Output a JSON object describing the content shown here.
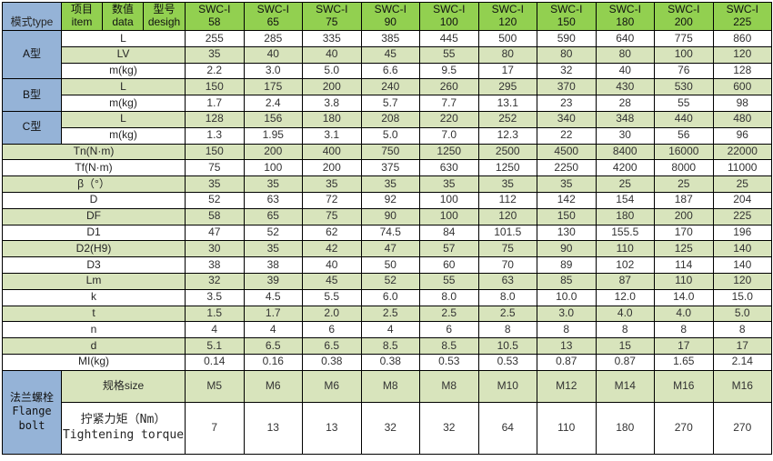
{
  "table": {
    "header": {
      "corner": "模式type",
      "columns": [
        {
          "zh": "项目",
          "en": "item"
        },
        {
          "zh": "数值",
          "en": "data"
        },
        {
          "zh": "型号",
          "en": "desigh"
        }
      ],
      "models": [
        {
          "series": "SWC-I",
          "size": "58"
        },
        {
          "series": "SWC-I",
          "size": "65"
        },
        {
          "series": "SWC-I",
          "size": "75"
        },
        {
          "series": "SWC-I",
          "size": "90"
        },
        {
          "series": "SWC-I",
          "size": "100"
        },
        {
          "series": "SWC-I",
          "size": "120"
        },
        {
          "series": "SWC-I",
          "size": "150"
        },
        {
          "series": "SWC-I",
          "size": "180"
        },
        {
          "series": "SWC-I",
          "size": "200"
        },
        {
          "series": "SWC-I",
          "size": "225"
        }
      ]
    },
    "type_sections": [
      {
        "type": "A型",
        "rows": [
          {
            "label": "L",
            "values": [
              "255",
              "285",
              "335",
              "385",
              "445",
              "500",
              "590",
              "640",
              "775",
              "860"
            ]
          },
          {
            "label": "LV",
            "values": [
              "35",
              "40",
              "40",
              "45",
              "55",
              "80",
              "80",
              "80",
              "100",
              "120"
            ]
          },
          {
            "label": "m(kg)",
            "values": [
              "2.2",
              "3.0",
              "5.0",
              "6.6",
              "9.5",
              "17",
              "32",
              "40",
              "76",
              "128"
            ]
          }
        ]
      },
      {
        "type": "B型",
        "rows": [
          {
            "label": "L",
            "values": [
              "150",
              "175",
              "200",
              "240",
              "260",
              "295",
              "370",
              "430",
              "530",
              "600"
            ]
          },
          {
            "label": "m(kg)",
            "values": [
              "1.7",
              "2.4",
              "3.8",
              "5.7",
              "7.7",
              "13.1",
              "23",
              "28",
              "55",
              "98"
            ]
          }
        ]
      },
      {
        "type": "C型",
        "rows": [
          {
            "label": "L",
            "values": [
              "128",
              "156",
              "180",
              "208",
              "220",
              "252",
              "340",
              "348",
              "440",
              "480"
            ]
          },
          {
            "label": "m(kg)",
            "values": [
              "1.3",
              "1.95",
              "3.1",
              "5.0",
              "7.0",
              "12.3",
              "22",
              "30",
              "56",
              "96"
            ]
          }
        ]
      }
    ],
    "param_rows": [
      {
        "label": "Tn(N·m)",
        "values": [
          "150",
          "200",
          "400",
          "750",
          "1250",
          "2500",
          "4500",
          "8400",
          "16000",
          "22000"
        ]
      },
      {
        "label": "Tf(N·m)",
        "values": [
          "75",
          "100",
          "200",
          "375",
          "630",
          "1250",
          "2250",
          "4200",
          "8000",
          "11000"
        ]
      },
      {
        "label": "β（°）",
        "values": [
          "35",
          "35",
          "35",
          "35",
          "35",
          "35",
          "35",
          "25",
          "25",
          "25"
        ]
      },
      {
        "label": "D",
        "values": [
          "52",
          "63",
          "72",
          "92",
          "100",
          "112",
          "142",
          "154",
          "187",
          "204"
        ]
      },
      {
        "label": "DF",
        "values": [
          "58",
          "65",
          "75",
          "90",
          "100",
          "120",
          "150",
          "180",
          "200",
          "225"
        ]
      },
      {
        "label": "D1",
        "values": [
          "47",
          "52",
          "62",
          "74.5",
          "84",
          "101.5",
          "130",
          "155.5",
          "170",
          "196"
        ]
      },
      {
        "label": "D2(H9)",
        "values": [
          "30",
          "35",
          "42",
          "47",
          "57",
          "75",
          "90",
          "110",
          "125",
          "140"
        ]
      },
      {
        "label": "D3",
        "values": [
          "38",
          "38",
          "40",
          "50",
          "60",
          "70",
          "89",
          "102",
          "114",
          "140"
        ]
      },
      {
        "label": "Lm",
        "values": [
          "32",
          "39",
          "45",
          "52",
          "55",
          "63",
          "85",
          "87",
          "110",
          "120"
        ]
      },
      {
        "label": "k",
        "values": [
          "3.5",
          "4.5",
          "5.5",
          "6.0",
          "8.0",
          "8.0",
          "10.0",
          "12.0",
          "14.0",
          "15.0"
        ]
      },
      {
        "label": "t",
        "values": [
          "1.5",
          "1.7",
          "2.0",
          "2.5",
          "2.5",
          "2.5",
          "3.0",
          "4.0",
          "4.0",
          "5.0"
        ]
      },
      {
        "label": "n",
        "values": [
          "4",
          "4",
          "6",
          "4",
          "6",
          "8",
          "8",
          "8",
          "8",
          "8"
        ]
      },
      {
        "label": "d",
        "values": [
          "5.1",
          "6.5",
          "6.5",
          "8.5",
          "8.5",
          "10.5",
          "13",
          "15",
          "17",
          "17"
        ]
      },
      {
        "label": "MI(kg)",
        "values": [
          "0.14",
          "0.16",
          "0.38",
          "0.38",
          "0.53",
          "0.53",
          "0.87",
          "0.87",
          "1.65",
          "2.14"
        ]
      }
    ],
    "flange": {
      "type_lines": [
        "法兰螺栓",
        "Flange",
        "bolt"
      ],
      "size_label": "规格size",
      "sizes": [
        "M5",
        "M6",
        "M6",
        "M8",
        "M8",
        "M10",
        "M12",
        "M14",
        "M16",
        "M16"
      ],
      "torque_label_zh": "拧紧力矩（Nm）",
      "torque_label_en": "Tightening torque",
      "torques": [
        "7",
        "13",
        "13",
        "32",
        "32",
        "64",
        "110",
        "180",
        "270",
        "270"
      ]
    },
    "colors": {
      "header_green": "#92D050",
      "band_green": "#D8E4BC",
      "type_blue": "#95B3D7",
      "border": "#000000"
    }
  }
}
